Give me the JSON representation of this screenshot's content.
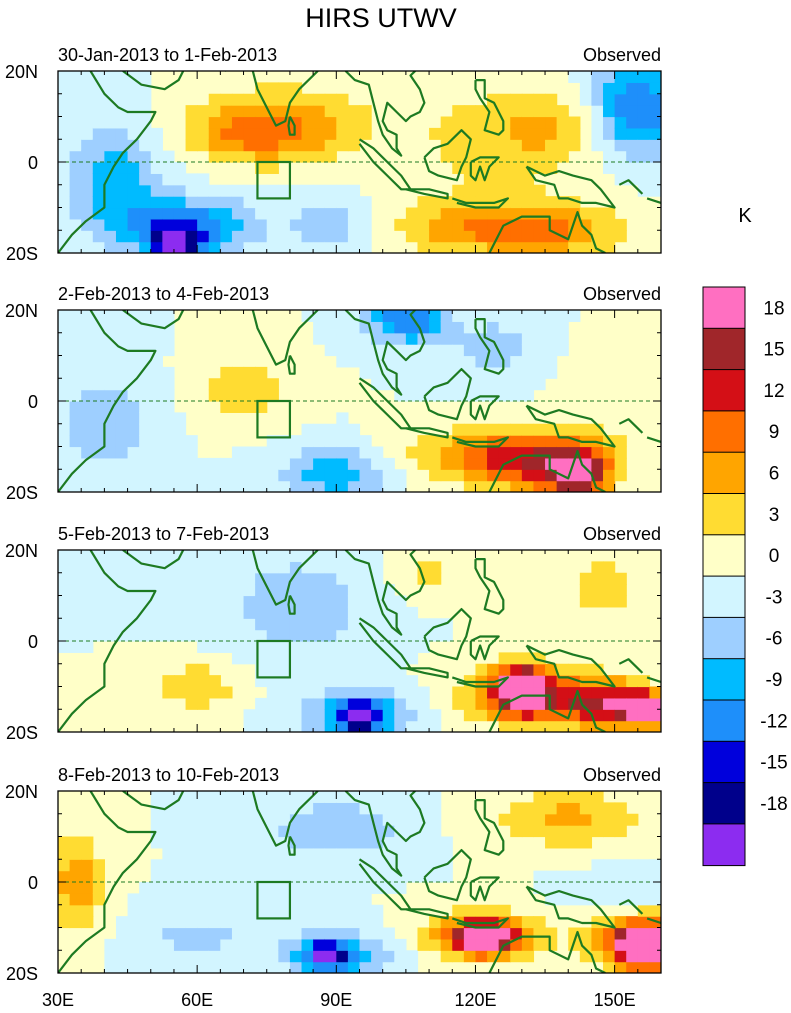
{
  "chart_data": {
    "type": "heatmap",
    "title": "HIRS UTWV",
    "units_label": "K",
    "x_ticks": [
      "30E",
      "60E",
      "90E",
      "120E",
      "150E"
    ],
    "x_tick_values": [
      30,
      60,
      90,
      120,
      150
    ],
    "x_range": [
      30,
      160
    ],
    "y_ticks": [
      "20N",
      "0",
      "20S"
    ],
    "y_tick_values": [
      20,
      0,
      -20
    ],
    "y_range": [
      -20,
      20
    ],
    "colorbar": {
      "levels": [
        "18",
        "15",
        "12",
        "9",
        "6",
        "3",
        "0",
        "-3",
        "-6",
        "-9",
        "-12",
        "-15",
        "-18"
      ],
      "colors": [
        "#ff6fc1",
        "#a0262a",
        "#d40f16",
        "#ff6f00",
        "#ffa500",
        "#ffdc32",
        "#ffffc8",
        "#d2f5ff",
        "#9ecfff",
        "#00bbff",
        "#1e8ffa",
        "#0000dc",
        "#00008b",
        "#8c2cf0"
      ]
    },
    "box_region": {
      "lon": [
        73,
        80
      ],
      "lat": [
        -8,
        0
      ]
    },
    "panels": [
      {
        "period": "30-Jan-2013 to 1-Feb-2013",
        "label": "Observed",
        "blobs": [
          {
            "lon": 78,
            "lat": 8,
            "rlon": 18,
            "rlat": 8,
            "v": 9
          },
          {
            "lon": 70,
            "lat": 6,
            "rlon": 12,
            "rlat": 6,
            "v": 4
          },
          {
            "lon": 125,
            "lat": 5,
            "rlon": 18,
            "rlat": 12,
            "v": 5
          },
          {
            "lon": 138,
            "lat": 8,
            "rlon": 10,
            "rlat": 7,
            "v": 4
          },
          {
            "lon": 135,
            "lat": -15,
            "rlon": 16,
            "rlat": 6,
            "v": 10
          },
          {
            "lon": 115,
            "lat": -14,
            "rlon": 14,
            "rlat": 6,
            "v": 6
          },
          {
            "lon": 42,
            "lat": -4,
            "rlon": 10,
            "rlat": 12,
            "v": -8
          },
          {
            "lon": 58,
            "lat": -14,
            "rlon": 14,
            "rlat": 6,
            "v": -12
          },
          {
            "lon": 55,
            "lat": -18,
            "rlon": 5,
            "rlat": 3,
            "v": -17
          },
          {
            "lon": 155,
            "lat": 12,
            "rlon": 10,
            "rlat": 10,
            "v": -12
          },
          {
            "lon": 88,
            "lat": -14,
            "rlon": 8,
            "rlat": 6,
            "v": -5
          }
        ]
      },
      {
        "period": "2-Feb-2013 to 4-Feb-2013",
        "label": "Observed",
        "blobs": [
          {
            "lon": 70,
            "lat": 2,
            "rlon": 10,
            "rlat": 7,
            "v": 5
          },
          {
            "lon": 125,
            "lat": -12,
            "rlon": 20,
            "rlat": 6,
            "v": 9
          },
          {
            "lon": 142,
            "lat": -16,
            "rlon": 6,
            "rlat": 5,
            "v": 17
          },
          {
            "lon": 135,
            "lat": -14,
            "rlon": 14,
            "rlat": 7,
            "v": 8
          },
          {
            "lon": 125,
            "lat": 12,
            "rlon": 12,
            "rlat": 8,
            "v": -4
          },
          {
            "lon": 105,
            "lat": 18,
            "rlon": 8,
            "rlat": 5,
            "v": -12
          },
          {
            "lon": 40,
            "lat": -5,
            "rlon": 10,
            "rlat": 10,
            "v": -6
          },
          {
            "lon": 90,
            "lat": -16,
            "rlon": 12,
            "rlat": 6,
            "v": -8
          },
          {
            "lon": 150,
            "lat": 5,
            "rlon": 12,
            "rlat": 10,
            "v": 3
          }
        ]
      },
      {
        "period": "5-Feb-2013 to 7-Feb-2013",
        "label": "Observed",
        "blobs": [
          {
            "lon": 132,
            "lat": -12,
            "rlon": 14,
            "rlat": 6,
            "v": 14
          },
          {
            "lon": 130,
            "lat": -10,
            "rlon": 5,
            "rlat": 5,
            "v": 18
          },
          {
            "lon": 150,
            "lat": -14,
            "rlon": 10,
            "rlat": 5,
            "v": 15
          },
          {
            "lon": 157,
            "lat": -15,
            "rlon": 4,
            "rlat": 3,
            "v": 20
          },
          {
            "lon": 82,
            "lat": 8,
            "rlon": 14,
            "rlat": 10,
            "v": -6
          },
          {
            "lon": 95,
            "lat": -16,
            "rlon": 12,
            "rlat": 5,
            "v": -10
          },
          {
            "lon": 95,
            "lat": -17,
            "rlon": 4,
            "rlat": 3,
            "v": -15
          },
          {
            "lon": 60,
            "lat": -10,
            "rlon": 8,
            "rlat": 5,
            "v": 6
          },
          {
            "lon": 148,
            "lat": 12,
            "rlon": 8,
            "rlat": 7,
            "v": 5
          },
          {
            "lon": 110,
            "lat": 15,
            "rlon": 8,
            "rlat": 5,
            "v": 4
          }
        ]
      },
      {
        "period": "8-Feb-2013 to 10-Feb-2013",
        "label": "Observed",
        "blobs": [
          {
            "lon": 122,
            "lat": -12,
            "rlon": 12,
            "rlat": 5,
            "v": 14
          },
          {
            "lon": 122,
            "lat": -12,
            "rlon": 5,
            "rlat": 3,
            "v": 18
          },
          {
            "lon": 155,
            "lat": -13,
            "rlon": 10,
            "rlat": 6,
            "v": 15
          },
          {
            "lon": 157,
            "lat": -14,
            "rlon": 5,
            "rlat": 4,
            "v": 20
          },
          {
            "lon": 140,
            "lat": 14,
            "rlon": 16,
            "rlat": 6,
            "v": 7
          },
          {
            "lon": 34,
            "lat": 0,
            "rlon": 6,
            "rlat": 10,
            "v": 8
          },
          {
            "lon": 90,
            "lat": 12,
            "rlon": 14,
            "rlat": 6,
            "v": -6
          },
          {
            "lon": 90,
            "lat": -16,
            "rlon": 12,
            "rlat": 5,
            "v": -9
          },
          {
            "lon": 88,
            "lat": -16,
            "rlon": 4,
            "rlat": 3,
            "v": -13
          },
          {
            "lon": 60,
            "lat": -12,
            "rlon": 12,
            "rlat": 6,
            "v": -4
          },
          {
            "lon": 150,
            "lat": -3,
            "rlon": 10,
            "rlat": 5,
            "v": -3
          }
        ]
      }
    ]
  }
}
